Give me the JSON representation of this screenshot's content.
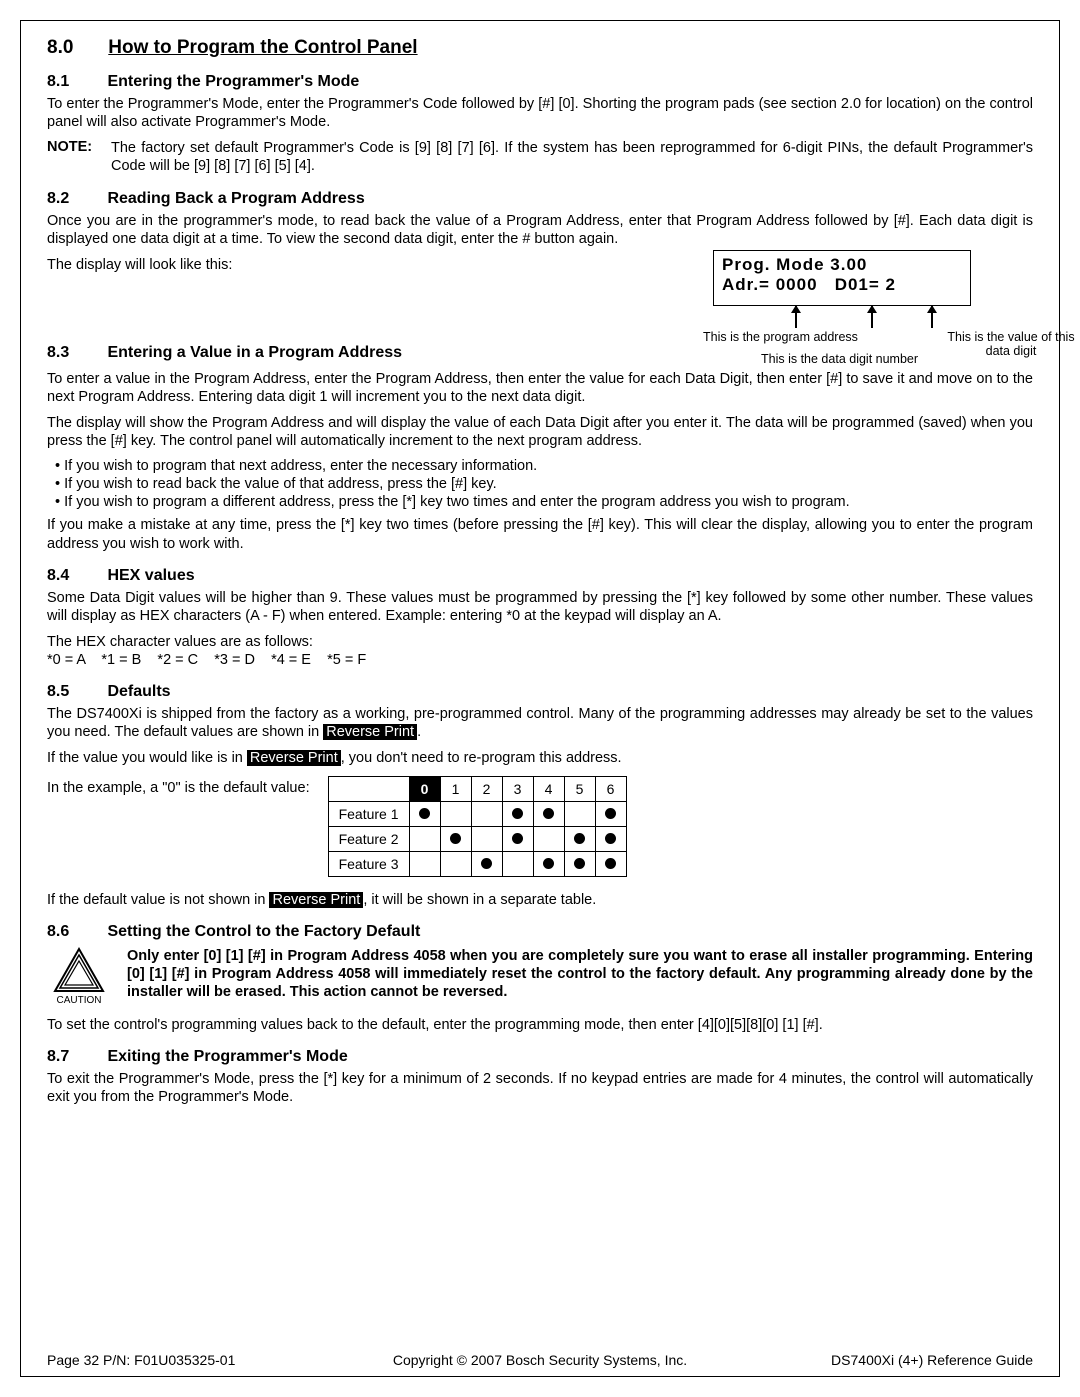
{
  "section": {
    "num": "8.0",
    "title": "How to Program the Control Panel"
  },
  "s81": {
    "num": "8.1",
    "title": "Entering the Programmer's Mode",
    "p1": "To enter the Programmer's Mode, enter the Programmer's Code followed by [#] [0]. Shorting the program pads (see section 2.0 for location) on the control panel will also activate Programmer's Mode.",
    "note_label": "NOTE:",
    "note": "The factory set default Programmer's Code is [9] [8] [7] [6]. If the system has been reprogrammed for 6-digit PINs, the default Programmer's Code will be [9] [8] [7] [6] [5] [4]."
  },
  "s82": {
    "num": "8.2",
    "title": "Reading Back a Program Address",
    "p1": "Once you are in the programmer's mode, to read back the value of a Program Address, enter that Program Address followed by [#]. Each data digit is displayed one data digit at a time. To view the second data digit, enter the # button again.",
    "p2": "The display will look like this:",
    "lcd_line1": "Prog.   Mode   3.00",
    "lcd_line2a": "Adr.= 0000",
    "lcd_line2b": "D01= 2",
    "cap1": "This is the program address",
    "cap2": "This is the data digit number",
    "cap3": "This is the value of this data digit"
  },
  "s83": {
    "num": "8.3",
    "title": "Entering a Value in a Program Address",
    "p1": "To enter a value in the Program Address, enter the Program Address, then enter the value for each Data Digit, then enter [#] to save it and move on to the next Program Address. Entering data digit 1 will increment you to the next data digit.",
    "p2": "The display will show the Program Address and will display the value of each Data Digit after you enter it. The data will be programmed (saved) when you press the [#] key. The control panel will automatically increment to the next program address.",
    "b1": "If you wish to program that next address, enter the necessary information.",
    "b2": "If you wish to read back the value of that address, press the [#] key.",
    "b3": "If you wish to program a different address, press the [*] key two times and enter the program address you wish to program.",
    "p3": "If you make a mistake at any time, press the [*] key two times (before pressing the [#] key). This will clear the display, allowing you to enter the program address you wish to work with."
  },
  "s84": {
    "num": "8.4",
    "title": "HEX values",
    "p1": "Some Data Digit values will be higher than 9. These values must be programmed by pressing the [*] key followed by some other number. These values will display as HEX characters (A - F) when entered. Example: entering *0 at the keypad will display an A.",
    "p2": "The HEX character values are as follows:",
    "hex": "*0 = A    *1 = B    *2 = C    *3 = D    *4 = E    *5 = F"
  },
  "s85": {
    "num": "8.5",
    "title": "Defaults",
    "p1a": "The DS7400Xi is shipped from the factory as a working, pre-programmed control. Many of the programming addresses may already be set to the values you need. The default values are shown in ",
    "rp": "Reverse Print",
    "p1b": ".",
    "p2a": "If the value you would like is in ",
    "p2b": ", you don't need to re-program this address.",
    "example_lead": "In the example, a \"0\" is the default value:",
    "table": {
      "headers": [
        "",
        "0",
        "1",
        "2",
        "3",
        "4",
        "5",
        "6"
      ],
      "rows": [
        {
          "label": "Feature 1",
          "dots": [
            1,
            0,
            0,
            1,
            1,
            0,
            1
          ]
        },
        {
          "label": "Feature 2",
          "dots": [
            0,
            1,
            0,
            1,
            0,
            1,
            1
          ]
        },
        {
          "label": "Feature 3",
          "dots": [
            0,
            0,
            1,
            0,
            1,
            1,
            1
          ]
        }
      ]
    },
    "p3a": "If the default value is not shown in ",
    "p3b": ", it will be shown in a separate table."
  },
  "s86": {
    "num": "8.6",
    "title": "Setting the Control to the Factory Default",
    "caution_label": "CAUTION",
    "caution": "Only enter [0] [1] [#] in Program Address 4058 when you are completely sure you want to erase all installer programming. Entering [0] [1] [#] in Program Address 4058 will immediately reset the control to the factory default. Any programming already done by the installer will be erased. This action cannot be reversed.",
    "p1": "To set the control's programming values back to the default, enter the programming mode, then enter [4][0][5][8][0] [1] [#]."
  },
  "s87": {
    "num": "8.7",
    "title": "Exiting the Programmer's Mode",
    "p1": "To exit the Programmer's Mode, press the [*] key for a minimum of 2 seconds. If no keypad entries are made for 4 minutes, the control will automatically exit you from the Programmer's Mode."
  },
  "footer": {
    "left": "Page 32    P/N: F01U035325-01",
    "mid": "Copyright © 2007 Bosch Security Systems, Inc.",
    "right": "DS7400Xi (4+)  Reference Guide"
  }
}
